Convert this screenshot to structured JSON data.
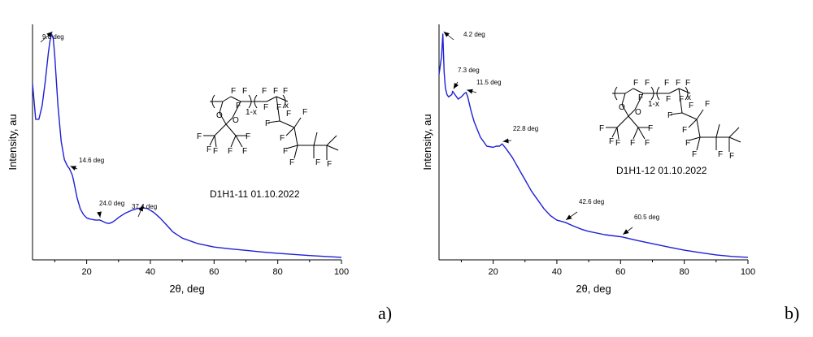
{
  "chart_data": [
    {
      "type": "line",
      "panel_label": "a)",
      "xlabel": "2θ, deg",
      "ylabel": "Intensity, au",
      "xlim": [
        3,
        100
      ],
      "ylim": [
        0,
        1
      ],
      "xticks": [
        20,
        40,
        60,
        80,
        100
      ],
      "grid": false,
      "line_color": "#1f1fd6",
      "sample_label": "D1H1-11 01.10.2022",
      "series": [
        {
          "x": [
            3,
            4,
            5,
            6,
            7,
            8,
            8.5,
            9,
            9.5,
            10,
            11,
            12,
            13,
            14,
            14.6,
            15.5,
            16,
            17,
            18,
            19,
            20,
            21,
            22,
            23,
            24,
            25,
            26,
            27,
            28,
            29,
            30,
            32,
            34,
            36,
            37.4,
            39,
            41,
            43,
            45,
            47,
            50,
            55,
            60,
            65,
            70,
            75,
            80,
            85,
            90,
            95,
            100
          ],
          "y": [
            0.78,
            0.62,
            0.62,
            0.68,
            0.79,
            0.92,
            0.97,
            1.0,
            0.98,
            0.9,
            0.68,
            0.52,
            0.44,
            0.41,
            0.4,
            0.37,
            0.34,
            0.27,
            0.22,
            0.195,
            0.18,
            0.175,
            0.172,
            0.17,
            0.171,
            0.165,
            0.158,
            0.155,
            0.16,
            0.17,
            0.182,
            0.2,
            0.213,
            0.222,
            0.225,
            0.222,
            0.205,
            0.18,
            0.15,
            0.118,
            0.09,
            0.065,
            0.05,
            0.042,
            0.035,
            0.028,
            0.022,
            0.017,
            0.012,
            0.008,
            0.004
          ]
        }
      ],
      "annotations": [
        {
          "text": "9.0 deg",
          "x": 9.0
        },
        {
          "text": "14.6 deg",
          "x": 14.6
        },
        {
          "text": "24.0 deg",
          "x": 24.0
        },
        {
          "text": "37.4 deg",
          "x": 37.4
        }
      ],
      "structure": {
        "f_labels": [
          "F",
          "F",
          "F",
          "F",
          "F",
          "F",
          "F",
          "F",
          "F",
          "F",
          "F",
          "F",
          "F",
          "F",
          "F",
          "F",
          "F",
          "F",
          "F",
          "F",
          "F",
          "F"
        ],
        "o_labels": [
          "O",
          "O"
        ],
        "subscripts": [
          "1-x",
          "x"
        ]
      }
    },
    {
      "type": "line",
      "panel_label": "b)",
      "xlabel": "2θ, deg",
      "ylabel": "Intensity, au",
      "xlim": [
        3,
        100
      ],
      "ylim": [
        0,
        1
      ],
      "xticks": [
        20,
        40,
        60,
        80,
        100
      ],
      "grid": false,
      "line_color": "#1f1fd6",
      "sample_label": "D1H1-12 01.10.2022",
      "series": [
        {
          "x": [
            3,
            3.8,
            4.2,
            4.6,
            5,
            5.5,
            6,
            7,
            7.3,
            8,
            9,
            10,
            11,
            11.5,
            12,
            13,
            14,
            16,
            18,
            20,
            21,
            22,
            22.8,
            24,
            26,
            28,
            30,
            32,
            34,
            36,
            38,
            40,
            42.6,
            45,
            48,
            50,
            55,
            60.5,
            65,
            70,
            75,
            80,
            85,
            90,
            95,
            100
          ],
          "y": [
            0.82,
            0.9,
            1.0,
            0.83,
            0.76,
            0.73,
            0.72,
            0.73,
            0.745,
            0.73,
            0.71,
            0.72,
            0.735,
            0.74,
            0.72,
            0.66,
            0.61,
            0.54,
            0.5,
            0.495,
            0.5,
            0.5,
            0.51,
            0.49,
            0.45,
            0.4,
            0.35,
            0.3,
            0.26,
            0.22,
            0.19,
            0.17,
            0.16,
            0.145,
            0.128,
            0.12,
            0.105,
            0.095,
            0.08,
            0.065,
            0.05,
            0.036,
            0.025,
            0.015,
            0.008,
            0.004
          ]
        }
      ],
      "annotations": [
        {
          "text": "4.2 deg",
          "x": 4.2
        },
        {
          "text": "7.3 deg",
          "x": 7.3
        },
        {
          "text": "11.5 deg",
          "x": 11.5
        },
        {
          "text": "22.8 deg",
          "x": 22.8
        },
        {
          "text": "42.6 deg",
          "x": 42.6
        },
        {
          "text": "60.5 deg",
          "x": 60.5
        }
      ],
      "structure": {
        "f_labels": [
          "F",
          "F",
          "F",
          "F",
          "F",
          "F",
          "F",
          "F",
          "F",
          "F",
          "F",
          "F",
          "F",
          "F",
          "F",
          "F",
          "F",
          "F",
          "F",
          "F",
          "F",
          "F"
        ],
        "o_labels": [
          "O",
          "O"
        ],
        "subscripts": [
          "1-x",
          "x"
        ]
      }
    }
  ]
}
